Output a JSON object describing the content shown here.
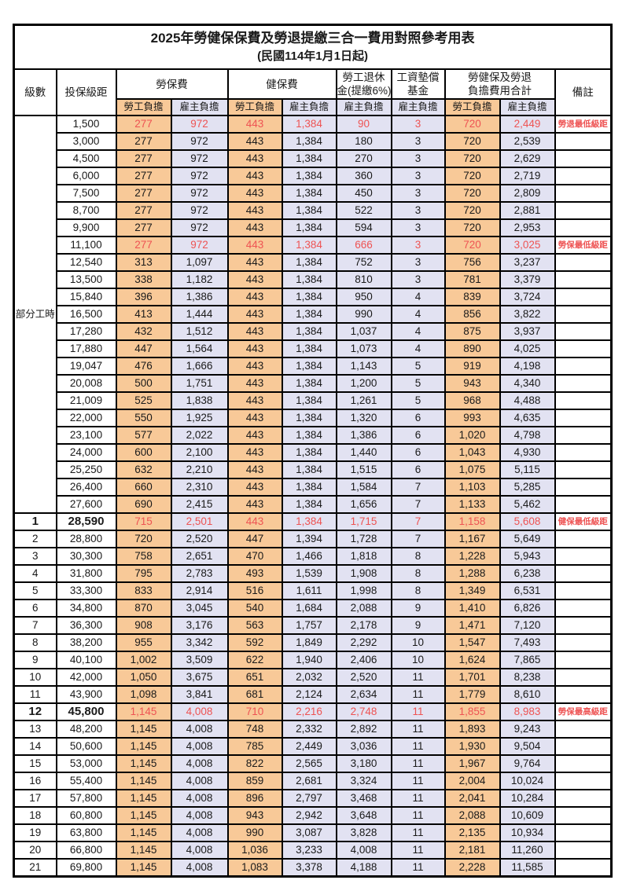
{
  "title": "2025年勞健保保費及勞退提繳三合一費用對照參考用表",
  "subtitle": "(民國114年1月1日起)",
  "colors": {
    "employee_col_bg": "#F8C998",
    "employer_col_bg": "#E2E2F2",
    "highlight_red": "#EE5353",
    "border": "#000000"
  },
  "table": {
    "headers": {
      "level": "級數",
      "bracket": "投保級距",
      "labor": "勞保費",
      "health": "健保費",
      "pension_line1": "勞工退休",
      "pension_line2": "金(提繳6%)",
      "wage_fund_line1": "工資墊償",
      "wage_fund_line2": "基金",
      "total_line1": "勞健保及勞退",
      "total_line2": "負擔費用合計",
      "remark": "備註",
      "sub_employee": "勞工負擔",
      "sub_employer": "雇主負擔"
    },
    "part_time_label": "部分工時",
    "part_time_rowspan": 23,
    "rows": [
      {
        "l": "",
        "b": "1,500",
        "v": [
          "277",
          "972",
          "443",
          "1,384",
          "90",
          "3",
          "720",
          "2,449"
        ],
        "r": "勞退最低級距",
        "hl": true
      },
      {
        "l": "",
        "b": "3,000",
        "v": [
          "277",
          "972",
          "443",
          "1,384",
          "180",
          "3",
          "720",
          "2,539"
        ]
      },
      {
        "l": "",
        "b": "4,500",
        "v": [
          "277",
          "972",
          "443",
          "1,384",
          "270",
          "3",
          "720",
          "2,629"
        ]
      },
      {
        "l": "",
        "b": "6,000",
        "v": [
          "277",
          "972",
          "443",
          "1,384",
          "360",
          "3",
          "720",
          "2,719"
        ]
      },
      {
        "l": "",
        "b": "7,500",
        "v": [
          "277",
          "972",
          "443",
          "1,384",
          "450",
          "3",
          "720",
          "2,809"
        ]
      },
      {
        "l": "",
        "b": "8,700",
        "v": [
          "277",
          "972",
          "443",
          "1,384",
          "522",
          "3",
          "720",
          "2,881"
        ]
      },
      {
        "l": "",
        "b": "9,900",
        "v": [
          "277",
          "972",
          "443",
          "1,384",
          "594",
          "3",
          "720",
          "2,953"
        ]
      },
      {
        "l": "",
        "b": "11,100",
        "v": [
          "277",
          "972",
          "443",
          "1,384",
          "666",
          "3",
          "720",
          "3,025"
        ],
        "r": "勞保最低級距",
        "hl": true
      },
      {
        "l": "",
        "b": "12,540",
        "v": [
          "313",
          "1,097",
          "443",
          "1,384",
          "752",
          "3",
          "756",
          "3,237"
        ]
      },
      {
        "l": "",
        "b": "13,500",
        "v": [
          "338",
          "1,182",
          "443",
          "1,384",
          "810",
          "3",
          "781",
          "3,379"
        ]
      },
      {
        "l": "",
        "b": "15,840",
        "v": [
          "396",
          "1,386",
          "443",
          "1,384",
          "950",
          "4",
          "839",
          "3,724"
        ]
      },
      {
        "l": "",
        "b": "16,500",
        "v": [
          "413",
          "1,444",
          "443",
          "1,384",
          "990",
          "4",
          "856",
          "3,822"
        ]
      },
      {
        "l": "",
        "b": "17,280",
        "v": [
          "432",
          "1,512",
          "443",
          "1,384",
          "1,037",
          "4",
          "875",
          "3,937"
        ]
      },
      {
        "l": "",
        "b": "17,880",
        "v": [
          "447",
          "1,564",
          "443",
          "1,384",
          "1,073",
          "4",
          "890",
          "4,025"
        ]
      },
      {
        "l": "",
        "b": "19,047",
        "v": [
          "476",
          "1,666",
          "443",
          "1,384",
          "1,143",
          "5",
          "919",
          "4,198"
        ]
      },
      {
        "l": "",
        "b": "20,008",
        "v": [
          "500",
          "1,751",
          "443",
          "1,384",
          "1,200",
          "5",
          "943",
          "4,340"
        ]
      },
      {
        "l": "",
        "b": "21,009",
        "v": [
          "525",
          "1,838",
          "443",
          "1,384",
          "1,261",
          "5",
          "968",
          "4,488"
        ]
      },
      {
        "l": "",
        "b": "22,000",
        "v": [
          "550",
          "1,925",
          "443",
          "1,384",
          "1,320",
          "6",
          "993",
          "4,635"
        ]
      },
      {
        "l": "",
        "b": "23,100",
        "v": [
          "577",
          "2,022",
          "443",
          "1,384",
          "1,386",
          "6",
          "1,020",
          "4,798"
        ]
      },
      {
        "l": "",
        "b": "24,000",
        "v": [
          "600",
          "2,100",
          "443",
          "1,384",
          "1,440",
          "6",
          "1,043",
          "4,930"
        ]
      },
      {
        "l": "",
        "b": "25,250",
        "v": [
          "632",
          "2,210",
          "443",
          "1,384",
          "1,515",
          "6",
          "1,075",
          "5,115"
        ]
      },
      {
        "l": "",
        "b": "26,400",
        "v": [
          "660",
          "2,310",
          "443",
          "1,384",
          "1,584",
          "7",
          "1,103",
          "5,285"
        ]
      },
      {
        "l": "",
        "b": "27,600",
        "v": [
          "690",
          "2,415",
          "443",
          "1,384",
          "1,656",
          "7",
          "1,133",
          "5,462"
        ]
      },
      {
        "l": "1",
        "b": "28,590",
        "v": [
          "715",
          "2,501",
          "443",
          "1,384",
          "1,715",
          "7",
          "1,158",
          "5,608"
        ],
        "r": "健保最低級距",
        "hl": true,
        "bold": true
      },
      {
        "l": "2",
        "b": "28,800",
        "v": [
          "720",
          "2,520",
          "447",
          "1,394",
          "1,728",
          "7",
          "1,167",
          "5,649"
        ]
      },
      {
        "l": "3",
        "b": "30,300",
        "v": [
          "758",
          "2,651",
          "470",
          "1,466",
          "1,818",
          "8",
          "1,228",
          "5,943"
        ]
      },
      {
        "l": "4",
        "b": "31,800",
        "v": [
          "795",
          "2,783",
          "493",
          "1,539",
          "1,908",
          "8",
          "1,288",
          "6,238"
        ]
      },
      {
        "l": "5",
        "b": "33,300",
        "v": [
          "833",
          "2,914",
          "516",
          "1,611",
          "1,998",
          "8",
          "1,349",
          "6,531"
        ]
      },
      {
        "l": "6",
        "b": "34,800",
        "v": [
          "870",
          "3,045",
          "540",
          "1,684",
          "2,088",
          "9",
          "1,410",
          "6,826"
        ]
      },
      {
        "l": "7",
        "b": "36,300",
        "v": [
          "908",
          "3,176",
          "563",
          "1,757",
          "2,178",
          "9",
          "1,471",
          "7,120"
        ]
      },
      {
        "l": "8",
        "b": "38,200",
        "v": [
          "955",
          "3,342",
          "592",
          "1,849",
          "2,292",
          "10",
          "1,547",
          "7,493"
        ]
      },
      {
        "l": "9",
        "b": "40,100",
        "v": [
          "1,002",
          "3,509",
          "622",
          "1,940",
          "2,406",
          "10",
          "1,624",
          "7,865"
        ]
      },
      {
        "l": "10",
        "b": "42,000",
        "v": [
          "1,050",
          "3,675",
          "651",
          "2,032",
          "2,520",
          "11",
          "1,701",
          "8,238"
        ]
      },
      {
        "l": "11",
        "b": "43,900",
        "v": [
          "1,098",
          "3,841",
          "681",
          "2,124",
          "2,634",
          "11",
          "1,779",
          "8,610"
        ]
      },
      {
        "l": "12",
        "b": "45,800",
        "v": [
          "1,145",
          "4,008",
          "710",
          "2,216",
          "2,748",
          "11",
          "1,855",
          "8,983"
        ],
        "r": "勞保最高級距",
        "hl": true,
        "bold": true
      },
      {
        "l": "13",
        "b": "48,200",
        "v": [
          "1,145",
          "4,008",
          "748",
          "2,332",
          "2,892",
          "11",
          "1,893",
          "9,243"
        ]
      },
      {
        "l": "14",
        "b": "50,600",
        "v": [
          "1,145",
          "4,008",
          "785",
          "2,449",
          "3,036",
          "11",
          "1,930",
          "9,504"
        ]
      },
      {
        "l": "15",
        "b": "53,000",
        "v": [
          "1,145",
          "4,008",
          "822",
          "2,565",
          "3,180",
          "11",
          "1,967",
          "9,764"
        ]
      },
      {
        "l": "16",
        "b": "55,400",
        "v": [
          "1,145",
          "4,008",
          "859",
          "2,681",
          "3,324",
          "11",
          "2,004",
          "10,024"
        ]
      },
      {
        "l": "17",
        "b": "57,800",
        "v": [
          "1,145",
          "4,008",
          "896",
          "2,797",
          "3,468",
          "11",
          "2,041",
          "10,284"
        ]
      },
      {
        "l": "18",
        "b": "60,800",
        "v": [
          "1,145",
          "4,008",
          "943",
          "2,942",
          "3,648",
          "11",
          "2,088",
          "10,609"
        ]
      },
      {
        "l": "19",
        "b": "63,800",
        "v": [
          "1,145",
          "4,008",
          "990",
          "3,087",
          "3,828",
          "11",
          "2,135",
          "10,934"
        ]
      },
      {
        "l": "20",
        "b": "66,800",
        "v": [
          "1,145",
          "4,008",
          "1,036",
          "3,233",
          "4,008",
          "11",
          "2,181",
          "11,260"
        ]
      },
      {
        "l": "21",
        "b": "69,800",
        "v": [
          "1,145",
          "4,008",
          "1,083",
          "3,378",
          "4,188",
          "11",
          "2,228",
          "11,585"
        ]
      }
    ]
  }
}
